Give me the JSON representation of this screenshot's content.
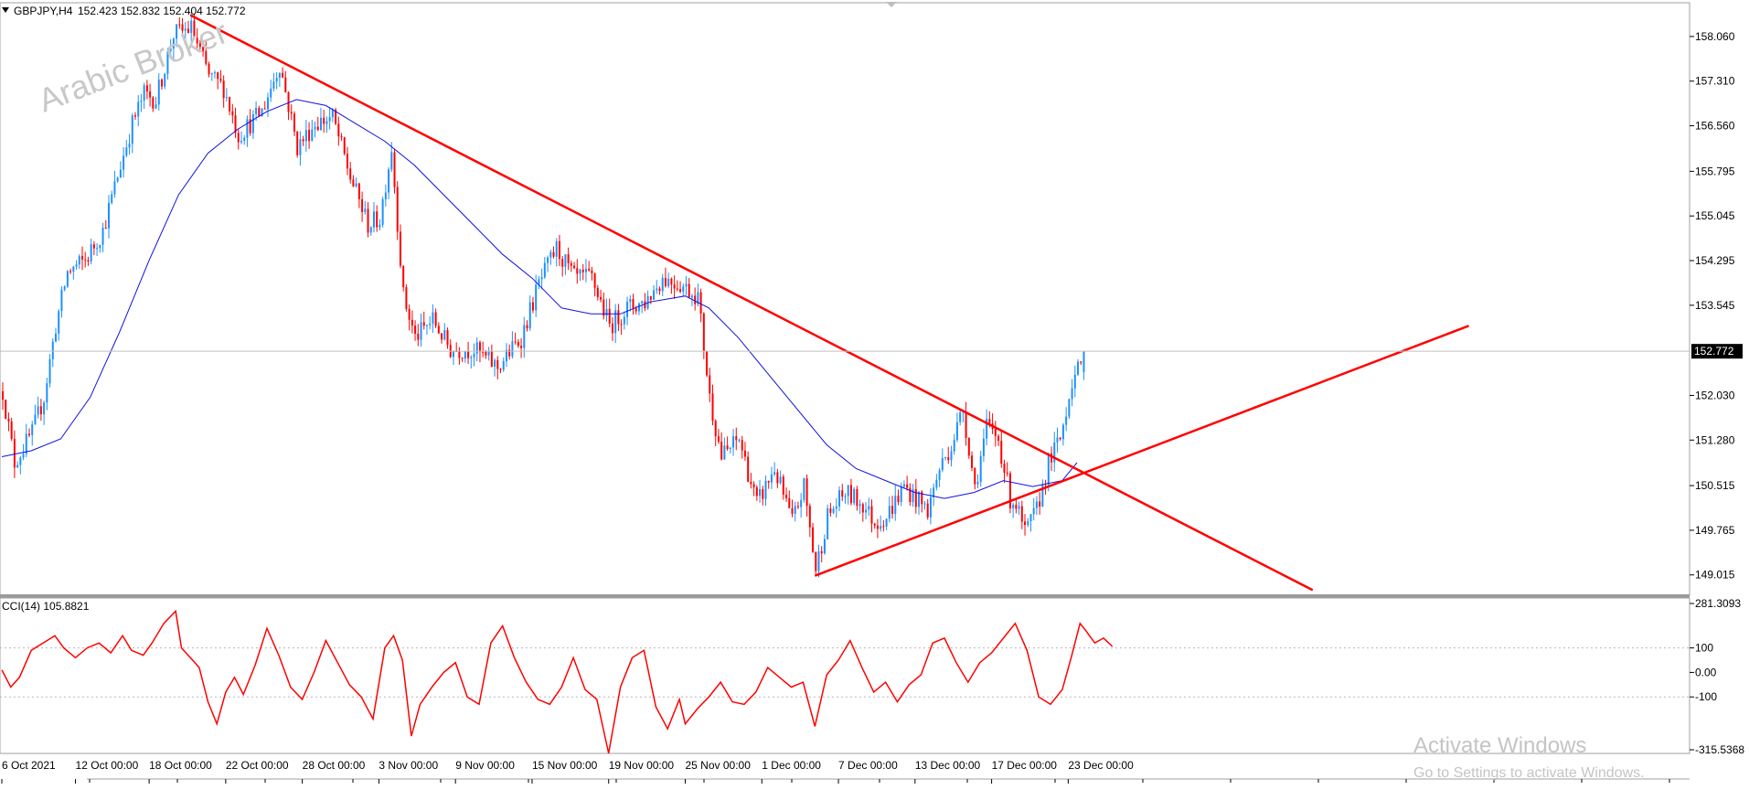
{
  "header": {
    "symbol": "GBPJPY,H4",
    "ohlc": "152.423 152.832 152.404 152.772"
  },
  "watermark": "Arabic Broker",
  "activation": {
    "title": "Activate Windows",
    "subtitle": "Go to Settings to activate Windows."
  },
  "colors": {
    "bull": "#1e90ff",
    "bear": "#ff0000",
    "ma": "#1010e0",
    "trendline": "#ff0000",
    "cci": "#ff0000",
    "grid_level": "#b8b8b8",
    "current_price_bg": "#000000"
  },
  "chart_data": [
    {
      "type": "candlestick",
      "name": "price",
      "ylim": [
        148.75,
        158.55
      ],
      "yticks": [
        "158.060",
        "157.310",
        "156.560",
        "155.795",
        "155.045",
        "154.295",
        "153.545",
        "152.030",
        "151.280",
        "150.515",
        "149.765",
        "149.015"
      ],
      "ytick_values": [
        158.06,
        157.31,
        156.56,
        155.795,
        155.045,
        154.295,
        153.545,
        152.03,
        151.28,
        150.515,
        149.765,
        149.015
      ],
      "current_price": "152.772",
      "current_price_value": 152.772,
      "xticks": [
        "6 Oct 2021",
        "12 Oct 00:00",
        "18 Oct 00:00",
        "22 Oct 00:00",
        "28 Oct 00:00",
        "3 Nov 00:00",
        "9 Nov 00:00",
        "15 Nov 00:00",
        "19 Nov 00:00",
        "25 Nov 00:00",
        "1 Dec 00:00",
        "7 Dec 00:00",
        "13 Dec 00:00",
        "17 Dec 00:00",
        "23 Dec 00:00"
      ],
      "xtick_index": [
        0,
        25,
        50,
        76,
        102,
        128,
        154,
        180,
        206,
        232,
        258,
        284,
        310,
        336,
        362
      ],
      "close_path": [
        [
          0,
          152.1
        ],
        [
          4,
          150.9
        ],
        [
          10,
          151.4
        ],
        [
          14,
          152.0
        ],
        [
          18,
          153.2
        ],
        [
          22,
          154.1
        ],
        [
          28,
          154.3
        ],
        [
          34,
          154.8
        ],
        [
          40,
          155.9
        ],
        [
          44,
          156.6
        ],
        [
          48,
          157.1
        ],
        [
          52,
          157.0
        ],
        [
          58,
          158.1
        ],
        [
          64,
          158.2
        ],
        [
          70,
          157.4
        ],
        [
          75,
          157.2
        ],
        [
          80,
          156.4
        ],
        [
          88,
          156.8
        ],
        [
          94,
          157.6
        ],
        [
          100,
          156.2
        ],
        [
          106,
          156.6
        ],
        [
          112,
          156.7
        ],
        [
          118,
          155.7
        ],
        [
          124,
          154.9
        ],
        [
          128,
          155.0
        ],
        [
          132,
          156.2
        ],
        [
          136,
          153.7
        ],
        [
          140,
          153.0
        ],
        [
          146,
          153.3
        ],
        [
          152,
          152.8
        ],
        [
          160,
          152.8
        ],
        [
          168,
          152.5
        ],
        [
          176,
          153.0
        ],
        [
          182,
          153.9
        ],
        [
          188,
          154.5
        ],
        [
          194,
          154.0
        ],
        [
          200,
          154.0
        ],
        [
          206,
          153.2
        ],
        [
          212,
          153.5
        ],
        [
          218,
          153.6
        ],
        [
          224,
          154.0
        ],
        [
          230,
          153.9
        ],
        [
          236,
          153.7
        ],
        [
          240,
          152.0
        ],
        [
          244,
          151.0
        ],
        [
          250,
          151.3
        ],
        [
          256,
          150.2
        ],
        [
          262,
          150.8
        ],
        [
          268,
          149.9
        ],
        [
          272,
          150.5
        ],
        [
          276,
          149.1
        ],
        [
          280,
          150.0
        ],
        [
          286,
          150.4
        ],
        [
          292,
          150.2
        ],
        [
          296,
          149.9
        ],
        [
          300,
          150.0
        ],
        [
          306,
          150.5
        ],
        [
          310,
          150.3
        ],
        [
          314,
          150.1
        ],
        [
          318,
          150.8
        ],
        [
          322,
          151.2
        ],
        [
          326,
          151.8
        ],
        [
          330,
          150.5
        ],
        [
          334,
          151.5
        ],
        [
          338,
          151.3
        ],
        [
          342,
          150.3
        ],
        [
          344,
          150.2
        ],
        [
          347,
          149.7
        ],
        [
          351,
          150.1
        ],
        [
          355,
          150.9
        ],
        [
          359,
          151.3
        ],
        [
          363,
          152.3
        ],
        [
          366,
          152.5
        ],
        [
          367,
          152.77
        ]
      ],
      "series": [
        {
          "name": "MA",
          "values": [
            [
              0,
              151.0
            ],
            [
              10,
              151.1
            ],
            [
              20,
              151.3
            ],
            [
              30,
              152.0
            ],
            [
              40,
              153.1
            ],
            [
              50,
              154.3
            ],
            [
              60,
              155.4
            ],
            [
              70,
              156.1
            ],
            [
              80,
              156.5
            ],
            [
              90,
              156.8
            ],
            [
              100,
              157.0
            ],
            [
              110,
              156.9
            ],
            [
              120,
              156.6
            ],
            [
              130,
              156.3
            ],
            [
              140,
              155.9
            ],
            [
              150,
              155.4
            ],
            [
              160,
              154.9
            ],
            [
              170,
              154.4
            ],
            [
              180,
              154.0
            ],
            [
              190,
              153.5
            ],
            [
              200,
              153.4
            ],
            [
              210,
              153.4
            ],
            [
              220,
              153.6
            ],
            [
              232,
              153.7
            ],
            [
              240,
              153.5
            ],
            [
              250,
              153.0
            ],
            [
              260,
              152.4
            ],
            [
              270,
              151.8
            ],
            [
              280,
              151.2
            ],
            [
              290,
              150.8
            ],
            [
              300,
              150.6
            ],
            [
              310,
              150.4
            ],
            [
              320,
              150.3
            ],
            [
              330,
              150.4
            ],
            [
              340,
              150.6
            ],
            [
              350,
              150.5
            ],
            [
              360,
              150.6
            ],
            [
              365,
              150.9
            ]
          ]
        }
      ],
      "trendlines": [
        {
          "from": [
            64,
            158.42
          ],
          "to": [
            445,
            148.76
          ]
        },
        {
          "from": [
            276,
            149.0
          ],
          "to": [
            498,
            153.2
          ]
        }
      ]
    },
    {
      "type": "line",
      "name": "CCI(14)",
      "label": "CCI(14) 105.8821",
      "ylim": [
        -315.5368,
        281.3093
      ],
      "yticks": [
        "281.3093",
        "100",
        "0.00",
        "-100",
        "-315.5368"
      ],
      "ytick_values": [
        281.3093,
        100,
        0,
        -100,
        -315.5368
      ],
      "levels": [
        100,
        -100
      ],
      "values": [
        [
          0,
          10
        ],
        [
          3,
          -60
        ],
        [
          6,
          -20
        ],
        [
          10,
          90
        ],
        [
          14,
          120
        ],
        [
          18,
          150
        ],
        [
          21,
          100
        ],
        [
          25,
          60
        ],
        [
          29,
          100
        ],
        [
          33,
          120
        ],
        [
          37,
          80
        ],
        [
          41,
          150
        ],
        [
          44,
          90
        ],
        [
          48,
          70
        ],
        [
          51,
          120
        ],
        [
          55,
          200
        ],
        [
          59,
          250
        ],
        [
          61,
          100
        ],
        [
          64,
          60
        ],
        [
          67,
          20
        ],
        [
          70,
          -120
        ],
        [
          73,
          -210
        ],
        [
          76,
          -80
        ],
        [
          79,
          -20
        ],
        [
          82,
          -90
        ],
        [
          86,
          30
        ],
        [
          90,
          180
        ],
        [
          94,
          70
        ],
        [
          98,
          -60
        ],
        [
          102,
          -110
        ],
        [
          106,
          0
        ],
        [
          110,
          130
        ],
        [
          114,
          40
        ],
        [
          118,
          -50
        ],
        [
          122,
          -100
        ],
        [
          126,
          -190
        ],
        [
          130,
          100
        ],
        [
          133,
          150
        ],
        [
          136,
          50
        ],
        [
          139,
          -260
        ],
        [
          142,
          -130
        ],
        [
          146,
          -60
        ],
        [
          150,
          0
        ],
        [
          154,
          40
        ],
        [
          158,
          -100
        ],
        [
          162,
          -130
        ],
        [
          166,
          120
        ],
        [
          170,
          190
        ],
        [
          174,
          60
        ],
        [
          178,
          -40
        ],
        [
          182,
          -110
        ],
        [
          186,
          -130
        ],
        [
          190,
          -60
        ],
        [
          194,
          60
        ],
        [
          198,
          -70
        ],
        [
          202,
          -110
        ],
        [
          206,
          -330
        ],
        [
          210,
          -60
        ],
        [
          214,
          60
        ],
        [
          218,
          90
        ],
        [
          222,
          -140
        ],
        [
          226,
          -230
        ],
        [
          230,
          -110
        ],
        [
          232,
          -210
        ],
        [
          236,
          -150
        ],
        [
          240,
          -100
        ],
        [
          244,
          -40
        ],
        [
          248,
          -120
        ],
        [
          252,
          -130
        ],
        [
          256,
          -80
        ],
        [
          260,
          20
        ],
        [
          264,
          -20
        ],
        [
          268,
          -60
        ],
        [
          272,
          -40
        ],
        [
          276,
          -220
        ],
        [
          280,
          -10
        ],
        [
          284,
          50
        ],
        [
          288,
          130
        ],
        [
          292,
          20
        ],
        [
          296,
          -80
        ],
        [
          300,
          -40
        ],
        [
          304,
          -120
        ],
        [
          308,
          -50
        ],
        [
          312,
          -10
        ],
        [
          316,
          120
        ],
        [
          320,
          140
        ],
        [
          324,
          40
        ],
        [
          328,
          -40
        ],
        [
          332,
          40
        ],
        [
          336,
          80
        ],
        [
          340,
          140
        ],
        [
          344,
          200
        ],
        [
          348,
          90
        ],
        [
          352,
          -100
        ],
        [
          356,
          -130
        ],
        [
          360,
          -70
        ],
        [
          363,
          60
        ],
        [
          366,
          200
        ],
        [
          368,
          170
        ],
        [
          371,
          120
        ],
        [
          374,
          140
        ],
        [
          377,
          105.88
        ]
      ]
    }
  ]
}
